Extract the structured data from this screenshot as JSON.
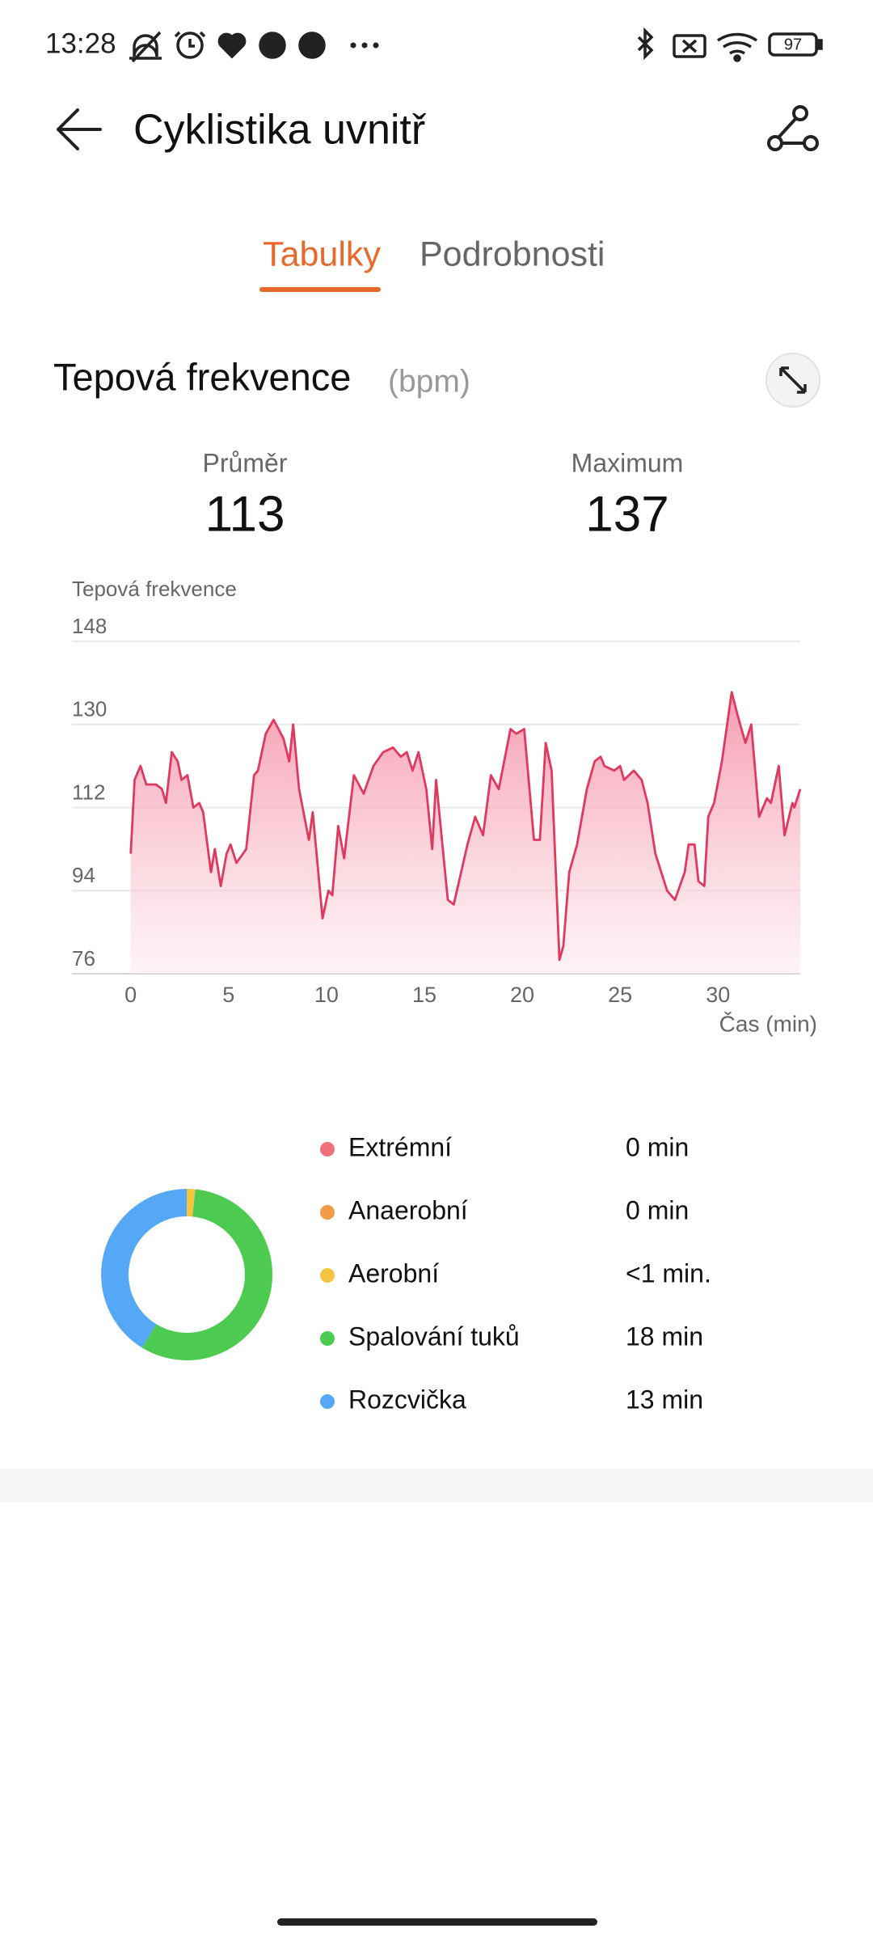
{
  "status_bar": {
    "time": "13:28",
    "battery": "97"
  },
  "header": {
    "title": "Cyklistika uvnitř"
  },
  "tabs": [
    "Tabulky",
    "Podrobnosti"
  ],
  "section": {
    "title": "Tepová frekvence",
    "unit": "(bpm)"
  },
  "stats": [
    {
      "label": "Průměr",
      "value": 113
    },
    {
      "label": "Maximum",
      "value": 137
    }
  ],
  "chart_data": {
    "type": "area",
    "y_label": "Tepová frekvence",
    "x_label": "Čas (min)",
    "x": [
      0,
      0.2,
      0.5,
      0.8,
      1.3,
      1.6,
      1.8,
      2.1,
      2.4,
      2.6,
      2.9,
      3.2,
      3.5,
      3.7,
      4.1,
      4.3,
      4.6,
      4.9,
      5.1,
      5.4,
      5.9,
      6.3,
      6.5,
      6.9,
      7.3,
      7.8,
      8.1,
      8.3,
      8.6,
      9.1,
      9.3,
      9.8,
      10.1,
      10.3,
      10.6,
      10.9,
      11.4,
      11.9,
      12.4,
      12.9,
      13.4,
      13.8,
      14.1,
      14.4,
      14.7,
      15.1,
      15.4,
      15.6,
      16.2,
      16.5,
      17.2,
      17.6,
      18.0,
      18.4,
      18.8,
      19.4,
      19.7,
      20.1,
      20.6,
      20.9,
      21.2,
      21.5,
      21.9,
      22.1,
      22.4,
      22.8,
      23.3,
      23.7,
      24.0,
      24.2,
      24.7,
      25.0,
      25.2,
      25.7,
      26.1,
      26.4,
      26.8,
      27.4,
      27.8,
      28.3,
      28.5,
      28.8,
      29.0,
      29.3,
      29.5,
      29.8,
      30.2,
      30.7,
      31.0,
      31.4,
      31.7,
      32.1,
      32.5,
      32.7,
      33.1,
      33.4,
      33.8,
      33.9,
      34.2
    ],
    "series": [
      {
        "color": "#e0395f",
        "values": [
          102,
          118,
          121,
          117,
          117,
          116,
          113,
          124,
          122,
          118,
          119,
          112,
          113,
          111,
          98,
          103,
          95,
          102,
          104,
          100,
          103,
          119,
          120,
          128,
          131,
          127,
          122,
          130,
          116,
          105,
          111,
          88,
          94,
          93,
          108,
          101,
          119,
          115,
          121,
          124,
          125,
          123,
          124,
          120,
          124,
          116,
          103,
          118,
          92,
          91,
          104,
          110,
          106,
          119,
          116,
          129,
          128,
          129,
          105,
          105,
          126,
          120,
          79,
          82,
          98,
          104,
          116,
          122,
          123,
          121,
          120,
          121,
          118,
          120,
          118,
          113,
          102,
          94,
          92,
          98,
          104,
          104,
          96,
          95,
          110,
          113,
          122,
          137,
          132,
          126,
          130,
          110,
          114,
          113,
          121,
          106,
          113,
          112,
          116
        ]
      }
    ],
    "xlim": [
      -3,
      34.2
    ],
    "ylim": [
      76,
      148
    ],
    "xticks": [
      0,
      5,
      10,
      15,
      20,
      25,
      30
    ],
    "yticks": [
      76,
      94,
      112,
      130,
      148
    ],
    "grid": true
  },
  "zones": {
    "type": "donut",
    "categories": [
      "Extrémní",
      "Anaerobní",
      "Aerobní",
      "Spalování tuků",
      "Rozcvička"
    ],
    "values": [
      0,
      0,
      0.5,
      18,
      13
    ],
    "value_labels": [
      "0 min",
      "0 min",
      "<1 min.",
      "18 min",
      "13 min"
    ],
    "colors": [
      "#f0707a",
      "#f29a4a",
      "#f5c542",
      "#4ccb50",
      "#55a8f5"
    ]
  }
}
